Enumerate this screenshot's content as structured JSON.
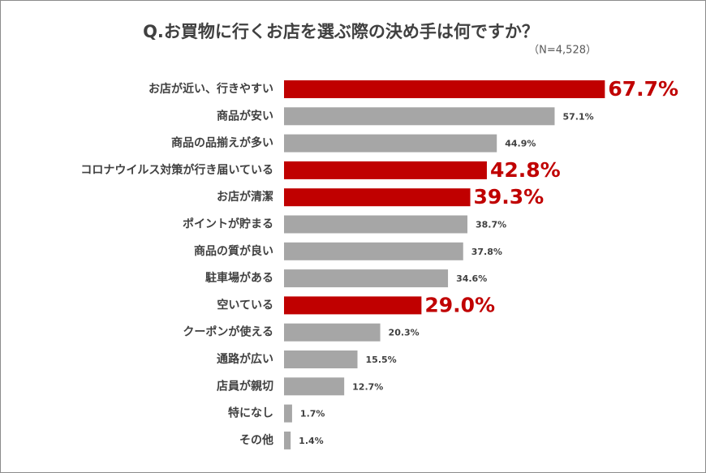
{
  "chart_data": {
    "type": "bar",
    "orientation": "horizontal",
    "title": "Q.お買物に行くお店を選ぶ際の決め手は何ですか？",
    "subtitle": "（N=4,528）",
    "categories": [
      "お店が近い、行きやすい",
      "商品が安い",
      "商品の品揃えが多い",
      "コロナウイルス対策が行き届いている",
      "お店が清潔",
      "ポイントが貯まる",
      "商品の質が良い",
      "駐車場がある",
      "空いている",
      "クーポンが使える",
      "通路が広い",
      "店員が親切",
      "特になし",
      "その他"
    ],
    "values": [
      67.7,
      57.1,
      44.9,
      42.8,
      39.3,
      38.7,
      37.8,
      34.6,
      29.0,
      20.3,
      15.5,
      12.7,
      1.7,
      1.4
    ],
    "value_labels": [
      "67.7%",
      "57.1%",
      "44.9%",
      "42.8%",
      "39.3%",
      "38.7%",
      "37.8%",
      "34.6%",
      "29.0%",
      "20.3%",
      "15.5%",
      "12.7%",
      "1.7%",
      "1.4%"
    ],
    "highlighted": [
      true,
      false,
      false,
      true,
      true,
      false,
      false,
      false,
      true,
      false,
      false,
      false,
      false,
      false
    ],
    "color": "#a6a6a6",
    "highlight_color": "#c00000"
  }
}
